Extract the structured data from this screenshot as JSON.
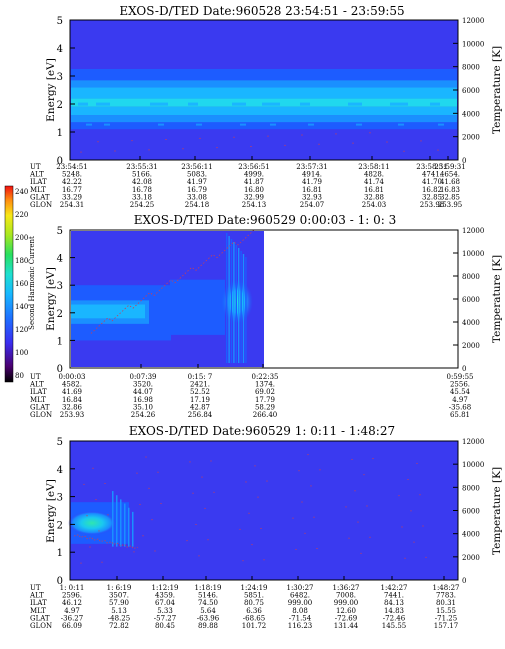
{
  "chart_data": [
    {
      "type": "heatmap",
      "title": "EXOS-D/TED  Date:960528  23:54:51 - 23:59:55",
      "ylabel": "Energy [eV]",
      "y2label": "Temperature [K]",
      "ylim": [
        0,
        5
      ],
      "y2lim": [
        0,
        12000
      ],
      "yticks": [
        "0",
        "1",
        "2",
        "3",
        "4",
        "5"
      ],
      "y2ticks": [
        "0",
        "2000",
        "4000",
        "6000",
        "8000",
        "10000",
        "12000"
      ],
      "data_coverage": [
        0,
        1
      ],
      "intensity_bands": [
        {
          "from": 0.0,
          "to": 1.1,
          "level": 1
        },
        {
          "from": 1.1,
          "to": 1.35,
          "level": 2
        },
        {
          "from": 1.35,
          "to": 1.6,
          "level": 3
        },
        {
          "from": 1.6,
          "to": 1.9,
          "level": 4
        },
        {
          "from": 1.9,
          "to": 2.2,
          "level": 5
        },
        {
          "from": 2.2,
          "to": 2.6,
          "level": 4
        },
        {
          "from": 2.6,
          "to": 2.85,
          "level": 3
        },
        {
          "from": 2.85,
          "to": 3.25,
          "level": 2
        },
        {
          "from": 3.25,
          "to": 5.0,
          "level": 1
        }
      ],
      "table": {
        "row_labels": [
          "UT",
          "ALT",
          "ILAT",
          "MLT",
          "GLAT",
          "GLON"
        ],
        "columns": [
          [
            "23:54:51",
            "5248.",
            "42.22",
            "16.77",
            "33.29",
            "254.31"
          ],
          [
            "23:55:31",
            "5166.",
            "42.08",
            "16.78",
            "33.18",
            "254.25"
          ],
          [
            "23:56:11",
            "5083.",
            "41.97",
            "16.79",
            "33.08",
            "254.18"
          ],
          [
            "23:56:51",
            "4999.",
            "41.87",
            "16.80",
            "32.99",
            "254.13"
          ],
          [
            "23:57:31",
            "4914.",
            "41.79",
            "16.81",
            "32.93",
            "254.07"
          ],
          [
            "23:58:11",
            "4828.",
            "41.74",
            "16.81",
            "32.88",
            "254.03"
          ],
          [
            "23:58:51",
            "4741.",
            "41.70",
            "16.82",
            "32.85",
            "253.98"
          ],
          [
            "23:59:31",
            "4654.",
            "41.68",
            "16.83",
            "32.85",
            "253.95"
          ]
        ]
      }
    },
    {
      "type": "heatmap",
      "title": "EXOS-D/TED  Date:960529  0:00:03 - 1: 0: 3",
      "ylabel": "Energy [eV]",
      "y2label": "Temperature [K]",
      "ylim": [
        0,
        5
      ],
      "y2lim": [
        0,
        12000
      ],
      "yticks": [
        "0",
        "1",
        "2",
        "3",
        "4",
        "5"
      ],
      "y2ticks": [
        "0",
        "2000",
        "4000",
        "6000",
        "8000",
        "10000",
        "12000"
      ],
      "data_coverage": [
        0,
        0.5
      ],
      "colorbar": {
        "label": "Second Harmonic Current",
        "ticks": [
          "80",
          "100",
          "120",
          "140",
          "160",
          "180",
          "200",
          "220",
          "240"
        ]
      },
      "table": {
        "row_labels": [
          "UT",
          "ALT",
          "ILAT",
          "MLT",
          "GLAT",
          "GLON"
        ],
        "columns": [
          [
            "0:00:03",
            "4582.",
            "41.69",
            "16.84",
            "32.86",
            "253.93"
          ],
          [
            "0:07:39",
            "3520.",
            "44.07",
            "16.98",
            "35.10",
            "254.26"
          ],
          [
            "0:15: 7",
            "2421.",
            "52.52",
            "17.19",
            "42.87",
            "256.84"
          ],
          [
            "0:22:35",
            "1374.",
            "69.02",
            "17.79",
            "58.29",
            "266.40"
          ],
          [
            "0:59:55",
            "2556.",
            "45.54",
            "4.97",
            "-35.68",
            "65.81"
          ]
        ]
      }
    },
    {
      "type": "heatmap",
      "title": "EXOS-D/TED  Date:960529  1: 0:11 - 1:48:27",
      "ylabel": "Energy [eV]",
      "y2label": "Temperature [K]",
      "ylim": [
        0,
        5
      ],
      "y2lim": [
        0,
        12000
      ],
      "yticks": [
        "0",
        "1",
        "2",
        "3",
        "4",
        "5"
      ],
      "y2ticks": [
        "0",
        "2000",
        "4000",
        "6000",
        "8000",
        "10000",
        "12000"
      ],
      "data_coverage": [
        0,
        0.15
      ],
      "table": {
        "row_labels": [
          "UT",
          "ALT",
          "ILAT",
          "MLT",
          "GLAT",
          "GLON"
        ],
        "columns": [
          [
            "1: 0:11",
            "2596.",
            "46.12",
            "4.97",
            "-36.27",
            "66.09"
          ],
          [
            "1: 6:19",
            "3507.",
            "57.90",
            "5.13",
            "-48.25",
            "72.82"
          ],
          [
            "1:12:19",
            "4359.",
            "67.04",
            "5.33",
            "-57.27",
            "80.45"
          ],
          [
            "1:18:19",
            "5146.",
            "74.50",
            "5.64",
            "-63.96",
            "89.88"
          ],
          [
            "1:24:19",
            "5851.",
            "80.75",
            "6.36",
            "-68.65",
            "101.72"
          ],
          [
            "1:30:27",
            "6482.",
            "999.00",
            "8.08",
            "-71.54",
            "116.23"
          ],
          [
            "1:36:27",
            "7008.",
            "999.00",
            "12.60",
            "-72.69",
            "131.44"
          ],
          [
            "1:42:27",
            "7441.",
            "84.13",
            "14.83",
            "-72.46",
            "145.55"
          ],
          [
            "1:48:27",
            "7783.",
            "80.31",
            "15.55",
            "-71.25",
            "157.17"
          ]
        ]
      }
    }
  ],
  "colors": {
    "background_blue": "#3a3af0",
    "level_2": "#1d5cff",
    "level_3": "#1a90ff",
    "level_4": "#1ab6ff",
    "level_5": "#20d8ee",
    "temperature_trace": "#c04060"
  }
}
